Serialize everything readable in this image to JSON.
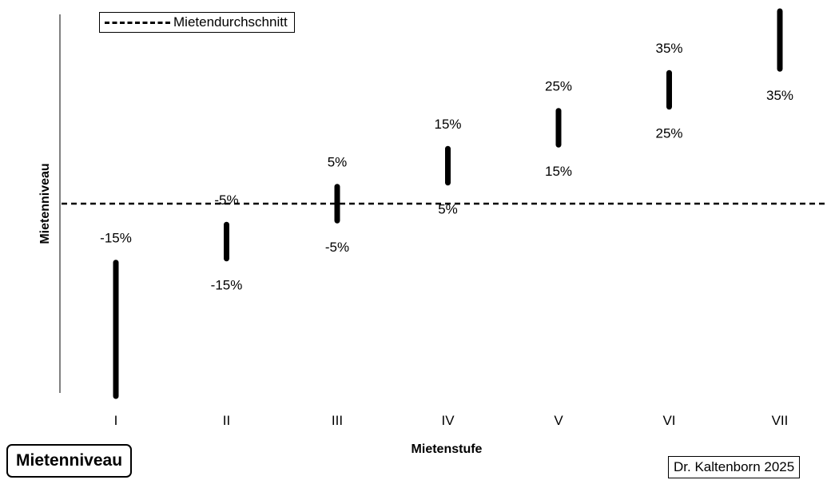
{
  "chart_data": {
    "type": "range",
    "categories": [
      "I",
      "II",
      "III",
      "IV",
      "V",
      "VI",
      "VII"
    ],
    "ranges": [
      {
        "category": "I",
        "low": null,
        "high": -15,
        "low_label": "",
        "high_label": "-15%"
      },
      {
        "category": "II",
        "low": -15,
        "high": -5,
        "low_label": "-15%",
        "high_label": "-5%"
      },
      {
        "category": "III",
        "low": -5,
        "high": 5,
        "low_label": "-5%",
        "high_label": "5%"
      },
      {
        "category": "IV",
        "low": 5,
        "high": 15,
        "low_label": "5%",
        "high_label": "15%"
      },
      {
        "category": "V",
        "low": 15,
        "high": 25,
        "low_label": "15%",
        "high_label": "25%"
      },
      {
        "category": "VI",
        "low": 25,
        "high": 35,
        "low_label": "25%",
        "high_label": "35%"
      },
      {
        "category": "VII",
        "low": 35,
        "high": null,
        "low_label": "35%",
        "high_label": ""
      }
    ],
    "reference_line": {
      "value": 0,
      "style": "dashed",
      "name": "Mietendurchschnitt"
    },
    "xlabel": "Mietenstufe",
    "ylabel": "Mietenniveau",
    "title": "",
    "ylim": [
      -50,
      50
    ],
    "grid": false,
    "legend_position": "top-left"
  },
  "badge_title": "Mietenniveau",
  "credit": "Dr. Kaltenborn 2025",
  "colors": {
    "mark": "#000000",
    "background": "#ffffff"
  }
}
